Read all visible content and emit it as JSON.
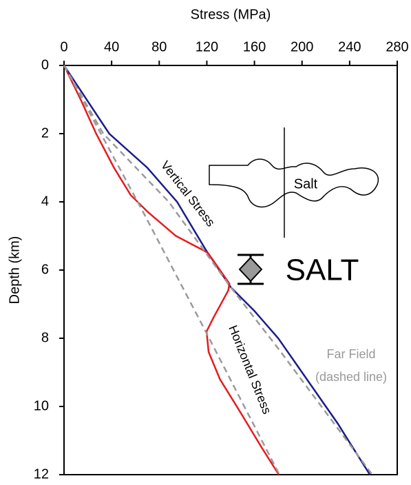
{
  "chart_data": {
    "type": "line",
    "x_label": "Stress (MPa)",
    "y_label": "Depth (km)",
    "xlim": [
      0,
      280
    ],
    "xticks": [
      0,
      40,
      80,
      120,
      160,
      200,
      240,
      280
    ],
    "ylim": [
      0,
      12
    ],
    "yticks": [
      0,
      2,
      4,
      6,
      8,
      10,
      12
    ],
    "y_inverted": true,
    "x_axis_position": "top",
    "series": [
      {
        "name": "Vertical Stress",
        "color": "#1c1c8a",
        "style": "solid",
        "x": [
          0,
          38,
          70,
          95,
          119,
          140,
          160,
          180,
          200,
          230,
          257
        ],
        "values": [
          0,
          2,
          3,
          4,
          5.4,
          6.5,
          7.2,
          8,
          9,
          10.5,
          12
        ]
      },
      {
        "name": "Horizontal Stress",
        "color": "#e8191e",
        "style": "solid",
        "x": [
          0,
          14,
          27,
          42,
          56,
          70.5,
          94,
          118.6,
          121,
          139,
          138,
          125.5,
          119.8,
          121.5,
          131,
          148.7,
          166,
          180.5
        ],
        "values": [
          0,
          1,
          2,
          3,
          3.8,
          4.3,
          5,
          5.45,
          5.5,
          6.4,
          6.6,
          7.4,
          7.8,
          8.4,
          9.2,
          10.2,
          11.2,
          12
        ]
      },
      {
        "color": "#9a9a9a",
        "style": "dashed",
        "x": [
          0,
          33,
          88,
          140,
          180,
          259
        ],
        "values": [
          0,
          2,
          4,
          6.5,
          8.3,
          12
        ]
      },
      {
        "color": "#9a9a9a",
        "style": "dashed",
        "x": [
          0,
          65,
          119,
          181
        ],
        "values": [
          0,
          4.2,
          7.8,
          12
        ]
      }
    ],
    "annotations": [
      "Far Field",
      "(dashed line)",
      "SALT",
      "Salt"
    ]
  }
}
